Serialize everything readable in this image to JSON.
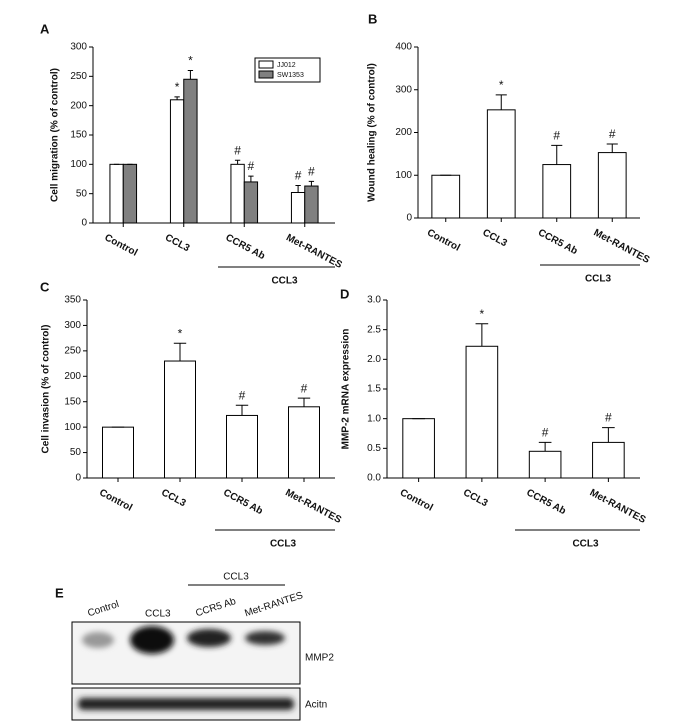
{
  "chart_data": [
    {
      "type": "bar",
      "label": "A",
      "y_label": "Cell migration (% of control)",
      "categories": [
        "Control",
        "CCL3",
        "CCR5 Ab",
        "Met-RANTES"
      ],
      "series": [
        {
          "name": "JJ012",
          "color": "#ffffff",
          "values": [
            100,
            210,
            100,
            52
          ],
          "errors": [
            0,
            5,
            7,
            12
          ],
          "annotations": [
            null,
            "*",
            "#",
            "#"
          ]
        },
        {
          "name": "SW1353",
          "color": "#808080",
          "values": [
            100,
            245,
            70,
            63
          ],
          "errors": [
            0,
            15,
            10,
            8
          ],
          "annotations": [
            null,
            "*",
            "#",
            "#"
          ]
        }
      ],
      "ylim": [
        0,
        300
      ],
      "yticks": [
        0,
        50,
        100,
        150,
        200,
        250,
        300
      ],
      "group_label": "CCL3"
    },
    {
      "type": "bar",
      "label": "B",
      "y_label": "Wound healing (% of control)",
      "categories": [
        "Control",
        "CCL3",
        "CCR5 Ab",
        "Met-RANTES"
      ],
      "series": [
        {
          "color": "#ffffff",
          "values": [
            100,
            253,
            125,
            153
          ],
          "errors": [
            0,
            35,
            45,
            20
          ],
          "annotations": [
            null,
            "*",
            "#",
            "#"
          ]
        }
      ],
      "ylim": [
        0,
        400
      ],
      "yticks": [
        0,
        100,
        200,
        300,
        400
      ],
      "group_label": "CCL3"
    },
    {
      "type": "bar",
      "label": "C",
      "y_label": "Cell invasion (% of control)",
      "categories": [
        "Control",
        "CCL3",
        "CCR5 Ab",
        "Met-RANTES"
      ],
      "series": [
        {
          "color": "#ffffff",
          "values": [
            100,
            230,
            123,
            140
          ],
          "errors": [
            0,
            35,
            20,
            17
          ],
          "annotations": [
            null,
            "*",
            "#",
            "#"
          ]
        }
      ],
      "ylim": [
        0,
        350
      ],
      "yticks": [
        0,
        50,
        100,
        150,
        200,
        250,
        300,
        350
      ],
      "group_label": "CCL3"
    },
    {
      "type": "bar",
      "label": "D",
      "y_label": "MMP-2 mRNA expression",
      "categories": [
        "Control",
        "CCL3",
        "CCR5 Ab",
        "Met-RANTES"
      ],
      "series": [
        {
          "color": "#ffffff",
          "values": [
            1.0,
            2.22,
            0.45,
            0.6
          ],
          "errors": [
            0,
            0.38,
            0.15,
            0.25
          ],
          "annotations": [
            null,
            "*",
            "#",
            "#"
          ]
        }
      ],
      "ylim": [
        0,
        3
      ],
      "yticks": [
        {
          "value": 0,
          "label": "0.0"
        },
        0.5,
        {
          "value": 1,
          "label": "1.0"
        },
        1.5,
        {
          "value": 2,
          "label": "2.0"
        },
        2.5,
        {
          "value": 3,
          "label": "3.0"
        }
      ],
      "group_label": "CCL3"
    }
  ],
  "blot": {
    "label": "E",
    "lanes": [
      "Control",
      "CCL3",
      "CCR5 Ab",
      "Met-RANTES"
    ],
    "group_label": "CCL3",
    "rows": [
      "MMP2",
      "Acitn"
    ]
  }
}
